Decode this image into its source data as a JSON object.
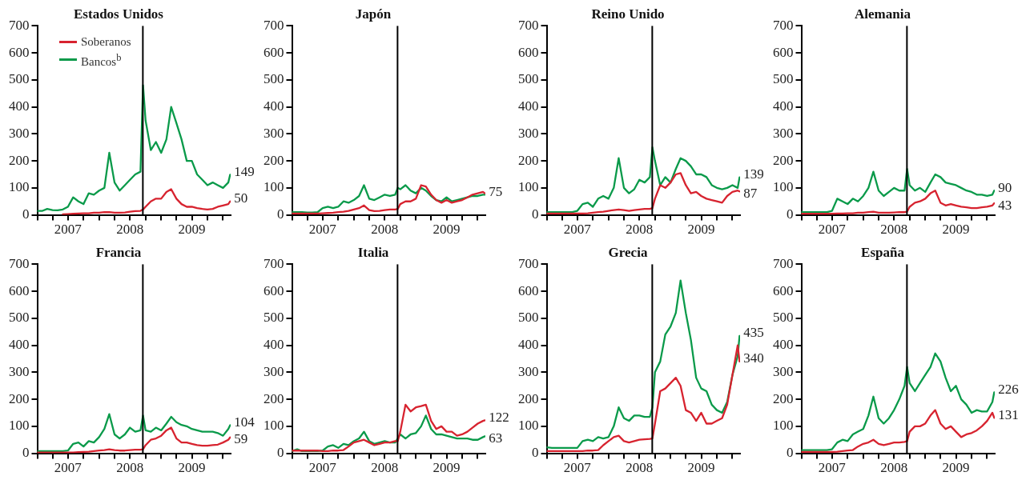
{
  "chart_data": [
    {
      "type": "line",
      "title": "Estados Unidos",
      "legend": "top left",
      "xlim": [
        "2007-01-01",
        "2010-02-15"
      ],
      "ylim": [
        0,
        700
      ],
      "yticks": [
        0,
        100,
        200,
        300,
        400,
        500,
        600,
        700
      ],
      "grid": false,
      "xticks": [
        {
          "value": "2007-01-01",
          "label": null
        },
        {
          "value": "2007-04-01",
          "label": null
        },
        {
          "value": "2007-07-01",
          "label": "2007"
        },
        {
          "value": "2007-10-01",
          "label": null
        },
        {
          "value": "2008-01-01",
          "label": null
        },
        {
          "value": "2008-04-01",
          "label": null
        },
        {
          "value": "2008-07-01",
          "label": "2008"
        },
        {
          "value": "2008-10-01",
          "label": null
        },
        {
          "value": "2009-01-01",
          "label": null
        },
        {
          "value": "2009-04-01",
          "label": null
        },
        {
          "value": "2009-07-01",
          "label": "2009"
        },
        {
          "value": "2009-10-01",
          "label": null
        },
        {
          "value": "2010-01-01",
          "label": null
        }
      ],
      "x": [
        "2007-01-01",
        "2007-02-01",
        "2007-03-01",
        "2007-04-01",
        "2007-05-01",
        "2007-06-01",
        "2007-07-01",
        "2007-08-01",
        "2007-09-01",
        "2007-10-01",
        "2007-11-01",
        "2007-12-01",
        "2008-01-01",
        "2008-02-01",
        "2008-03-01",
        "2008-04-01",
        "2008-05-01",
        "2008-06-01",
        "2008-07-01",
        "2008-08-01",
        "2008-09-01",
        "2008-09-16",
        "2008-10-01",
        "2008-11-01",
        "2008-12-01",
        "2009-01-01",
        "2009-02-01",
        "2009-03-01",
        "2009-04-01",
        "2009-05-01",
        "2009-06-01",
        "2009-07-01",
        "2009-08-01",
        "2009-09-01",
        "2009-10-01",
        "2009-11-01",
        "2009-12-01",
        "2010-01-01",
        "2010-02-01",
        "2010-02-12"
      ],
      "ref_lines": [
        {
          "axis": "x",
          "value": "2008-09-15",
          "color": "#000000"
        }
      ],
      "annotations": [
        {
          "text": "149",
          "x": "2010-02-12",
          "y": 149
        },
        {
          "text": "50",
          "x": "2010-02-12",
          "y": 50
        }
      ],
      "series": [
        {
          "name": "Soberanos",
          "color": "#d7232f",
          "values": [
            null,
            null,
            null,
            null,
            null,
            2,
            3,
            4,
            5,
            6,
            6,
            8,
            8,
            10,
            10,
            8,
            8,
            9,
            12,
            14,
            15,
            20,
            30,
            50,
            60,
            60,
            85,
            95,
            60,
            40,
            30,
            30,
            25,
            22,
            20,
            22,
            30,
            35,
            40,
            50
          ]
        },
        {
          "name": "Bancos$^{b}$",
          "color": "#0a9a4a",
          "values": [
            15,
            15,
            22,
            18,
            17,
            20,
            30,
            65,
            50,
            40,
            80,
            75,
            90,
            100,
            230,
            120,
            90,
            110,
            130,
            150,
            160,
            480,
            350,
            240,
            270,
            230,
            280,
            400,
            340,
            280,
            200,
            200,
            150,
            130,
            110,
            120,
            110,
            100,
            120,
            149
          ]
        }
      ]
    },
    {
      "type": "line",
      "title": "Japón",
      "xlim": [
        "2007-01-01",
        "2010-02-15"
      ],
      "ylim": [
        0,
        700
      ],
      "yticks": [
        0,
        100,
        200,
        300,
        400,
        500,
        600,
        700
      ],
      "grid": false,
      "xticks": [
        {
          "value": "2007-01-01",
          "label": null
        },
        {
          "value": "2007-04-01",
          "label": null
        },
        {
          "value": "2007-07-01",
          "label": "2007"
        },
        {
          "value": "2007-10-01",
          "label": null
        },
        {
          "value": "2008-01-01",
          "label": null
        },
        {
          "value": "2008-04-01",
          "label": null
        },
        {
          "value": "2008-07-01",
          "label": "2008"
        },
        {
          "value": "2008-10-01",
          "label": null
        },
        {
          "value": "2009-01-01",
          "label": null
        },
        {
          "value": "2009-04-01",
          "label": null
        },
        {
          "value": "2009-07-01",
          "label": "2009"
        },
        {
          "value": "2009-10-01",
          "label": null
        },
        {
          "value": "2010-01-01",
          "label": null
        }
      ],
      "x": [
        "2007-01-01",
        "2007-02-01",
        "2007-03-01",
        "2007-04-01",
        "2007-05-01",
        "2007-06-01",
        "2007-07-01",
        "2007-08-01",
        "2007-09-01",
        "2007-10-01",
        "2007-11-01",
        "2007-12-01",
        "2008-01-01",
        "2008-02-01",
        "2008-03-01",
        "2008-04-01",
        "2008-05-01",
        "2008-06-01",
        "2008-07-01",
        "2008-08-01",
        "2008-09-01",
        "2008-09-16",
        "2008-10-01",
        "2008-11-01",
        "2008-12-01",
        "2009-01-01",
        "2009-02-01",
        "2009-03-01",
        "2009-04-01",
        "2009-05-01",
        "2009-06-01",
        "2009-07-01",
        "2009-08-01",
        "2009-09-01",
        "2009-10-01",
        "2009-11-01",
        "2009-12-01",
        "2010-01-01",
        "2010-02-01",
        "2010-02-12"
      ],
      "ref_lines": [
        {
          "axis": "x",
          "value": "2008-09-15",
          "color": "#000000"
        }
      ],
      "annotations": [
        {
          "text": "75",
          "x": "2010-02-12",
          "y": 75
        }
      ],
      "series": [
        {
          "color": "#d7232f",
          "values": [
            5,
            5,
            5,
            5,
            5,
            5,
            6,
            7,
            8,
            10,
            12,
            15,
            20,
            25,
            35,
            18,
            14,
            15,
            18,
            20,
            20,
            22,
            40,
            50,
            50,
            60,
            110,
            105,
            75,
            55,
            45,
            55,
            45,
            50,
            55,
            65,
            75,
            80,
            85,
            80
          ]
        },
        {
          "color": "#0a9a4a",
          "values": [
            10,
            10,
            10,
            9,
            9,
            10,
            25,
            30,
            25,
            30,
            50,
            45,
            55,
            70,
            110,
            60,
            55,
            65,
            75,
            70,
            75,
            100,
            95,
            110,
            90,
            80,
            100,
            90,
            70,
            55,
            50,
            65,
            50,
            55,
            60,
            65,
            70,
            70,
            75,
            75
          ]
        }
      ]
    },
    {
      "type": "line",
      "title": "Reino Unido",
      "xlim": [
        "2007-01-01",
        "2010-02-15"
      ],
      "ylim": [
        0,
        700
      ],
      "yticks": [
        0,
        100,
        200,
        300,
        400,
        500,
        600,
        700
      ],
      "grid": false,
      "xticks": [
        {
          "value": "2007-01-01",
          "label": null
        },
        {
          "value": "2007-04-01",
          "label": null
        },
        {
          "value": "2007-07-01",
          "label": "2007"
        },
        {
          "value": "2007-10-01",
          "label": null
        },
        {
          "value": "2008-01-01",
          "label": null
        },
        {
          "value": "2008-04-01",
          "label": null
        },
        {
          "value": "2008-07-01",
          "label": "2008"
        },
        {
          "value": "2008-10-01",
          "label": null
        },
        {
          "value": "2009-01-01",
          "label": null
        },
        {
          "value": "2009-04-01",
          "label": null
        },
        {
          "value": "2009-07-01",
          "label": "2009"
        },
        {
          "value": "2009-10-01",
          "label": null
        },
        {
          "value": "2010-01-01",
          "label": null
        }
      ],
      "x": [
        "2007-01-01",
        "2007-02-01",
        "2007-03-01",
        "2007-04-01",
        "2007-05-01",
        "2007-06-01",
        "2007-07-01",
        "2007-08-01",
        "2007-09-01",
        "2007-10-01",
        "2007-11-01",
        "2007-12-01",
        "2008-01-01",
        "2008-02-01",
        "2008-03-01",
        "2008-04-01",
        "2008-05-01",
        "2008-06-01",
        "2008-07-01",
        "2008-08-01",
        "2008-09-01",
        "2008-09-16",
        "2008-10-01",
        "2008-11-01",
        "2008-12-01",
        "2009-01-01",
        "2009-02-01",
        "2009-03-01",
        "2009-04-01",
        "2009-05-01",
        "2009-06-01",
        "2009-07-01",
        "2009-08-01",
        "2009-09-01",
        "2009-10-01",
        "2009-11-01",
        "2009-12-01",
        "2010-01-01",
        "2010-02-01",
        "2010-02-12"
      ],
      "ref_lines": [
        {
          "axis": "x",
          "value": "2008-09-15",
          "color": "#000000"
        }
      ],
      "annotations": [
        {
          "text": "139",
          "x": "2010-02-12",
          "y": 139
        },
        {
          "text": "87",
          "x": "2010-02-12",
          "y": 87
        }
      ],
      "series": [
        {
          "color": "#d7232f",
          "values": [
            5,
            5,
            5,
            5,
            5,
            5,
            5,
            5,
            6,
            8,
            10,
            12,
            15,
            18,
            20,
            18,
            15,
            18,
            20,
            22,
            22,
            25,
            60,
            110,
            100,
            120,
            150,
            155,
            110,
            80,
            85,
            70,
            60,
            55,
            50,
            45,
            70,
            85,
            90,
            87
          ]
        },
        {
          "color": "#0a9a4a",
          "values": [
            10,
            10,
            10,
            10,
            10,
            10,
            15,
            40,
            45,
            30,
            60,
            70,
            60,
            100,
            210,
            100,
            80,
            95,
            130,
            120,
            140,
            250,
            200,
            110,
            140,
            120,
            170,
            210,
            200,
            180,
            150,
            150,
            140,
            110,
            100,
            95,
            100,
            110,
            100,
            139
          ]
        }
      ]
    },
    {
      "type": "line",
      "title": "Alemania",
      "xlim": [
        "2007-01-01",
        "2010-02-15"
      ],
      "ylim": [
        0,
        700
      ],
      "yticks": [
        0,
        100,
        200,
        300,
        400,
        500,
        600,
        700
      ],
      "grid": false,
      "xticks": [
        {
          "value": "2007-01-01",
          "label": null
        },
        {
          "value": "2007-04-01",
          "label": null
        },
        {
          "value": "2007-07-01",
          "label": "2007"
        },
        {
          "value": "2007-10-01",
          "label": null
        },
        {
          "value": "2008-01-01",
          "label": null
        },
        {
          "value": "2008-04-01",
          "label": null
        },
        {
          "value": "2008-07-01",
          "label": "2008"
        },
        {
          "value": "2008-10-01",
          "label": null
        },
        {
          "value": "2009-01-01",
          "label": null
        },
        {
          "value": "2009-04-01",
          "label": null
        },
        {
          "value": "2009-07-01",
          "label": "2009"
        },
        {
          "value": "2009-10-01",
          "label": null
        },
        {
          "value": "2010-01-01",
          "label": null
        }
      ],
      "x": [
        "2007-01-01",
        "2007-02-01",
        "2007-03-01",
        "2007-04-01",
        "2007-05-01",
        "2007-06-01",
        "2007-07-01",
        "2007-08-01",
        "2007-09-01",
        "2007-10-01",
        "2007-11-01",
        "2007-12-01",
        "2008-01-01",
        "2008-02-01",
        "2008-03-01",
        "2008-04-01",
        "2008-05-01",
        "2008-06-01",
        "2008-07-01",
        "2008-08-01",
        "2008-09-01",
        "2008-09-16",
        "2008-10-01",
        "2008-11-01",
        "2008-12-01",
        "2009-01-01",
        "2009-02-01",
        "2009-03-01",
        "2009-04-01",
        "2009-05-01",
        "2009-06-01",
        "2009-07-01",
        "2009-08-01",
        "2009-09-01",
        "2009-10-01",
        "2009-11-01",
        "2009-12-01",
        "2010-01-01",
        "2010-02-01",
        "2010-02-12"
      ],
      "ref_lines": [
        {
          "axis": "x",
          "value": "2008-09-15",
          "color": "#000000"
        }
      ],
      "annotations": [
        {
          "text": "90",
          "x": "2010-02-12",
          "y": 90
        },
        {
          "text": "43",
          "x": "2010-02-12",
          "y": 43
        }
      ],
      "series": [
        {
          "color": "#d7232f",
          "values": [
            4,
            4,
            4,
            4,
            4,
            4,
            4,
            5,
            5,
            6,
            6,
            8,
            8,
            10,
            12,
            8,
            8,
            8,
            9,
            10,
            10,
            12,
            30,
            45,
            50,
            60,
            80,
            90,
            45,
            35,
            40,
            35,
            30,
            28,
            25,
            25,
            28,
            30,
            35,
            43
          ]
        },
        {
          "color": "#0a9a4a",
          "values": [
            10,
            10,
            10,
            10,
            10,
            10,
            15,
            60,
            50,
            40,
            60,
            50,
            70,
            100,
            160,
            90,
            70,
            85,
            100,
            90,
            90,
            170,
            110,
            90,
            100,
            85,
            120,
            150,
            140,
            120,
            115,
            110,
            100,
            90,
            85,
            75,
            75,
            70,
            75,
            90
          ]
        }
      ]
    },
    {
      "type": "line",
      "title": "Francia",
      "xlim": [
        "2007-01-01",
        "2010-02-15"
      ],
      "ylim": [
        0,
        700
      ],
      "yticks": [
        0,
        100,
        200,
        300,
        400,
        500,
        600,
        700
      ],
      "grid": false,
      "xticks": [
        {
          "value": "2007-01-01",
          "label": null
        },
        {
          "value": "2007-04-01",
          "label": null
        },
        {
          "value": "2007-07-01",
          "label": "2007"
        },
        {
          "value": "2007-10-01",
          "label": null
        },
        {
          "value": "2008-01-01",
          "label": null
        },
        {
          "value": "2008-04-01",
          "label": null
        },
        {
          "value": "2008-07-01",
          "label": "2008"
        },
        {
          "value": "2008-10-01",
          "label": null
        },
        {
          "value": "2009-01-01",
          "label": null
        },
        {
          "value": "2009-04-01",
          "label": null
        },
        {
          "value": "2009-07-01",
          "label": "2009"
        },
        {
          "value": "2009-10-01",
          "label": null
        },
        {
          "value": "2010-01-01",
          "label": null
        }
      ],
      "x": [
        "2007-01-01",
        "2007-02-01",
        "2007-03-01",
        "2007-04-01",
        "2007-05-01",
        "2007-06-01",
        "2007-07-01",
        "2007-08-01",
        "2007-09-01",
        "2007-10-01",
        "2007-11-01",
        "2007-12-01",
        "2008-01-01",
        "2008-02-01",
        "2008-03-01",
        "2008-04-01",
        "2008-05-01",
        "2008-06-01",
        "2008-07-01",
        "2008-08-01",
        "2008-09-01",
        "2008-09-16",
        "2008-10-01",
        "2008-11-01",
        "2008-12-01",
        "2009-01-01",
        "2009-02-01",
        "2009-03-01",
        "2009-04-01",
        "2009-05-01",
        "2009-06-01",
        "2009-07-01",
        "2009-08-01",
        "2009-09-01",
        "2009-10-01",
        "2009-11-01",
        "2009-12-01",
        "2010-01-01",
        "2010-02-01",
        "2010-02-12"
      ],
      "ref_lines": [
        {
          "axis": "x",
          "value": "2008-09-15",
          "color": "#000000"
        }
      ],
      "annotations": [
        {
          "text": "104",
          "x": "2010-02-12",
          "y": 104
        },
        {
          "text": "59",
          "x": "2010-02-12",
          "y": 59
        }
      ],
      "series": [
        {
          "color": "#d7232f",
          "values": [
            3,
            3,
            3,
            3,
            3,
            3,
            3,
            3,
            4,
            5,
            6,
            8,
            10,
            12,
            15,
            12,
            10,
            10,
            12,
            13,
            13,
            15,
            30,
            50,
            55,
            65,
            85,
            95,
            55,
            40,
            40,
            35,
            30,
            28,
            28,
            30,
            32,
            40,
            50,
            59
          ]
        },
        {
          "color": "#0a9a4a",
          "values": [
            8,
            8,
            8,
            8,
            8,
            8,
            10,
            35,
            40,
            25,
            45,
            40,
            60,
            90,
            145,
            70,
            55,
            70,
            95,
            80,
            85,
            140,
            85,
            80,
            95,
            85,
            110,
            135,
            115,
            105,
            100,
            90,
            85,
            80,
            80,
            80,
            75,
            65,
            90,
            104
          ]
        }
      ]
    },
    {
      "type": "line",
      "title": "Italia",
      "xlim": [
        "2007-01-01",
        "2010-02-15"
      ],
      "ylim": [
        0,
        700
      ],
      "yticks": [
        0,
        100,
        200,
        300,
        400,
        500,
        600,
        700
      ],
      "grid": false,
      "xticks": [
        {
          "value": "2007-01-01",
          "label": null
        },
        {
          "value": "2007-04-01",
          "label": null
        },
        {
          "value": "2007-07-01",
          "label": "2007"
        },
        {
          "value": "2007-10-01",
          "label": null
        },
        {
          "value": "2008-01-01",
          "label": null
        },
        {
          "value": "2008-04-01",
          "label": null
        },
        {
          "value": "2008-07-01",
          "label": "2008"
        },
        {
          "value": "2008-10-01",
          "label": null
        },
        {
          "value": "2009-01-01",
          "label": null
        },
        {
          "value": "2009-04-01",
          "label": null
        },
        {
          "value": "2009-07-01",
          "label": "2009"
        },
        {
          "value": "2009-10-01",
          "label": null
        },
        {
          "value": "2010-01-01",
          "label": null
        }
      ],
      "x": [
        "2007-01-01",
        "2007-02-01",
        "2007-03-01",
        "2007-04-01",
        "2007-05-01",
        "2007-06-01",
        "2007-07-01",
        "2007-08-01",
        "2007-09-01",
        "2007-10-01",
        "2007-11-01",
        "2007-12-01",
        "2008-01-01",
        "2008-02-01",
        "2008-03-01",
        "2008-04-01",
        "2008-05-01",
        "2008-06-01",
        "2008-07-01",
        "2008-08-01",
        "2008-09-01",
        "2008-09-16",
        "2008-10-01",
        "2008-11-01",
        "2008-12-01",
        "2009-01-01",
        "2009-02-01",
        "2009-03-01",
        "2009-04-01",
        "2009-05-01",
        "2009-06-01",
        "2009-07-01",
        "2009-08-01",
        "2009-09-01",
        "2009-10-01",
        "2009-11-01",
        "2009-12-01",
        "2010-01-01",
        "2010-02-01",
        "2010-02-12"
      ],
      "ref_lines": [
        {
          "axis": "x",
          "value": "2008-09-15",
          "color": "#000000"
        }
      ],
      "annotations": [
        {
          "text": "122",
          "x": "2010-02-12",
          "y": 122
        },
        {
          "text": "63",
          "x": "2010-02-12",
          "y": 63
        }
      ],
      "series": [
        {
          "color": "#d7232f",
          "values": [
            10,
            10,
            10,
            10,
            10,
            10,
            8,
            8,
            10,
            10,
            12,
            25,
            40,
            45,
            50,
            40,
            30,
            35,
            40,
            40,
            45,
            45,
            80,
            180,
            155,
            170,
            175,
            180,
            120,
            90,
            100,
            80,
            80,
            65,
            70,
            80,
            95,
            110,
            120,
            122
          ]
        },
        {
          "color": "#0a9a4a",
          "values": [
            8,
            15,
            8,
            8,
            8,
            8,
            10,
            25,
            30,
            20,
            35,
            30,
            45,
            55,
            80,
            45,
            35,
            40,
            45,
            40,
            40,
            55,
            70,
            55,
            70,
            75,
            100,
            140,
            90,
            70,
            70,
            65,
            60,
            55,
            55,
            55,
            50,
            50,
            60,
            63
          ]
        }
      ]
    },
    {
      "type": "line",
      "title": "Grecia",
      "xlim": [
        "2007-01-01",
        "2010-02-15"
      ],
      "ylim": [
        0,
        700
      ],
      "yticks": [
        0,
        100,
        200,
        300,
        400,
        500,
        600,
        700
      ],
      "grid": false,
      "xticks": [
        {
          "value": "2007-01-01",
          "label": null
        },
        {
          "value": "2007-04-01",
          "label": null
        },
        {
          "value": "2007-07-01",
          "label": "2007"
        },
        {
          "value": "2007-10-01",
          "label": null
        },
        {
          "value": "2008-01-01",
          "label": null
        },
        {
          "value": "2008-04-01",
          "label": null
        },
        {
          "value": "2008-07-01",
          "label": "2008"
        },
        {
          "value": "2008-10-01",
          "label": null
        },
        {
          "value": "2009-01-01",
          "label": null
        },
        {
          "value": "2009-04-01",
          "label": null
        },
        {
          "value": "2009-07-01",
          "label": "2009"
        },
        {
          "value": "2009-10-01",
          "label": null
        },
        {
          "value": "2010-01-01",
          "label": null
        }
      ],
      "x": [
        "2007-01-01",
        "2007-02-01",
        "2007-03-01",
        "2007-04-01",
        "2007-05-01",
        "2007-06-01",
        "2007-07-01",
        "2007-08-01",
        "2007-09-01",
        "2007-10-01",
        "2007-11-01",
        "2007-12-01",
        "2008-01-01",
        "2008-02-01",
        "2008-03-01",
        "2008-04-01",
        "2008-05-01",
        "2008-06-01",
        "2008-07-01",
        "2008-08-01",
        "2008-09-01",
        "2008-09-16",
        "2008-10-01",
        "2008-11-01",
        "2008-12-01",
        "2009-01-01",
        "2009-02-01",
        "2009-03-01",
        "2009-04-01",
        "2009-05-01",
        "2009-06-01",
        "2009-07-01",
        "2009-08-01",
        "2009-09-01",
        "2009-10-01",
        "2009-11-01",
        "2009-12-01",
        "2010-01-01",
        "2010-02-01",
        "2010-02-12"
      ],
      "ref_lines": [
        {
          "axis": "x",
          "value": "2008-09-15",
          "color": "#000000"
        }
      ],
      "annotations": [
        {
          "text": "435",
          "x": "2010-02-12",
          "y": 435
        },
        {
          "text": "340",
          "x": "2010-02-12",
          "y": 340
        }
      ],
      "series": [
        {
          "color": "#d7232f",
          "values": [
            8,
            8,
            8,
            8,
            8,
            8,
            8,
            8,
            10,
            10,
            12,
            30,
            45,
            60,
            65,
            45,
            40,
            45,
            50,
            52,
            53,
            55,
            110,
            230,
            240,
            260,
            280,
            250,
            160,
            150,
            120,
            150,
            110,
            110,
            120,
            130,
            180,
            290,
            400,
            340
          ]
        },
        {
          "color": "#0a9a4a",
          "values": [
            22,
            20,
            20,
            20,
            20,
            20,
            20,
            45,
            50,
            45,
            60,
            55,
            60,
            100,
            170,
            130,
            120,
            140,
            140,
            135,
            135,
            170,
            300,
            340,
            440,
            470,
            520,
            640,
            520,
            420,
            280,
            240,
            230,
            180,
            160,
            150,
            190,
            290,
            360,
            435
          ]
        }
      ]
    },
    {
      "type": "line",
      "title": "España",
      "xlim": [
        "2007-01-01",
        "2010-02-15"
      ],
      "ylim": [
        0,
        700
      ],
      "yticks": [
        0,
        100,
        200,
        300,
        400,
        500,
        600,
        700
      ],
      "grid": false,
      "xticks": [
        {
          "value": "2007-01-01",
          "label": null
        },
        {
          "value": "2007-04-01",
          "label": null
        },
        {
          "value": "2007-07-01",
          "label": "2007"
        },
        {
          "value": "2007-10-01",
          "label": null
        },
        {
          "value": "2008-01-01",
          "label": null
        },
        {
          "value": "2008-04-01",
          "label": null
        },
        {
          "value": "2008-07-01",
          "label": "2008"
        },
        {
          "value": "2008-10-01",
          "label": null
        },
        {
          "value": "2009-01-01",
          "label": null
        },
        {
          "value": "2009-04-01",
          "label": null
        },
        {
          "value": "2009-07-01",
          "label": "2009"
        },
        {
          "value": "2009-10-01",
          "label": null
        },
        {
          "value": "2010-01-01",
          "label": null
        }
      ],
      "x": [
        "2007-01-01",
        "2007-02-01",
        "2007-03-01",
        "2007-04-01",
        "2007-05-01",
        "2007-06-01",
        "2007-07-01",
        "2007-08-01",
        "2007-09-01",
        "2007-10-01",
        "2007-11-01",
        "2007-12-01",
        "2008-01-01",
        "2008-02-01",
        "2008-03-01",
        "2008-04-01",
        "2008-05-01",
        "2008-06-01",
        "2008-07-01",
        "2008-08-01",
        "2008-09-01",
        "2008-09-16",
        "2008-10-01",
        "2008-11-01",
        "2008-12-01",
        "2009-01-01",
        "2009-02-01",
        "2009-03-01",
        "2009-04-01",
        "2009-05-01",
        "2009-06-01",
        "2009-07-01",
        "2009-08-01",
        "2009-09-01",
        "2009-10-01",
        "2009-11-01",
        "2009-12-01",
        "2010-01-01",
        "2010-02-01",
        "2010-02-12"
      ],
      "ref_lines": [
        {
          "axis": "x",
          "value": "2008-09-15",
          "color": "#000000"
        }
      ],
      "annotations": [
        {
          "text": "226",
          "x": "2010-02-12",
          "y": 226
        },
        {
          "text": "131",
          "x": "2010-02-12",
          "y": 131
        }
      ],
      "series": [
        {
          "color": "#d7232f",
          "values": [
            5,
            5,
            5,
            5,
            5,
            5,
            5,
            6,
            8,
            10,
            12,
            25,
            35,
            40,
            50,
            35,
            30,
            35,
            40,
            40,
            42,
            45,
            80,
            100,
            100,
            110,
            140,
            160,
            110,
            90,
            100,
            80,
            60,
            70,
            75,
            85,
            100,
            120,
            150,
            131
          ]
        },
        {
          "color": "#0a9a4a",
          "values": [
            12,
            12,
            12,
            12,
            12,
            12,
            15,
            40,
            50,
            45,
            70,
            80,
            90,
            140,
            210,
            130,
            110,
            130,
            160,
            200,
            250,
            320,
            260,
            230,
            260,
            290,
            320,
            370,
            340,
            280,
            230,
            250,
            200,
            180,
            150,
            160,
            155,
            155,
            190,
            226
          ]
        }
      ]
    }
  ]
}
